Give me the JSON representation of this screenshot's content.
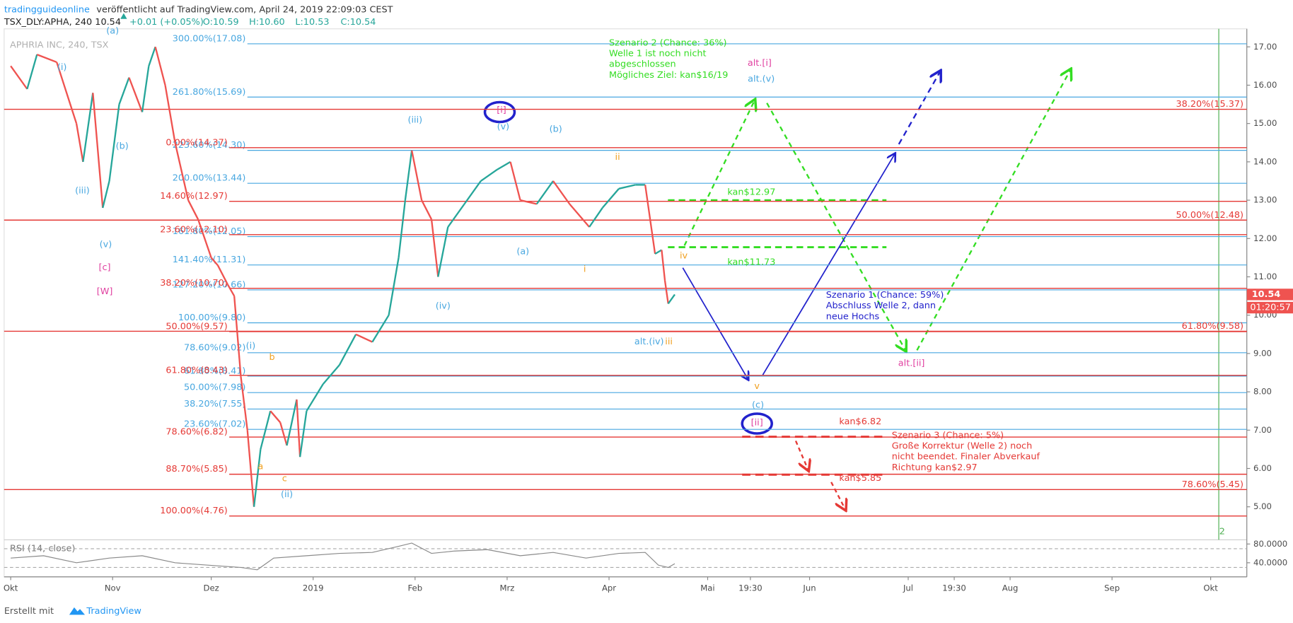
{
  "header": {
    "author": "tradingguideonline",
    "published": "veröffentlicht auf TradingView.com, April 24, 2019 22:09:03 CEST",
    "symbol": "TSX_DLY:APHA, 240 10.54",
    "change": "+0.01 (+0.05%)",
    "ohlc": [
      "O:10.59",
      "H:10.60",
      "L:10.53",
      "C:10.54"
    ],
    "watermark": "APHRIA INC, 240, TSX"
  },
  "footer": {
    "made_with": "Erstellt mit",
    "brand": "TradingView"
  },
  "chart_data": {
    "type": "line",
    "xlim": [
      -2,
      376
    ],
    "ylim": [
      4.14,
      17.47
    ],
    "yticks": [
      {
        "value": 5,
        "label": "5.00"
      },
      {
        "value": 6,
        "label": "6.00"
      },
      {
        "value": 7,
        "label": "7.00"
      },
      {
        "value": 8,
        "label": "8.00"
      },
      {
        "value": 9,
        "label": "9.00"
      },
      {
        "value": 10,
        "label": "10.00"
      },
      {
        "value": 11,
        "label": "11.00"
      },
      {
        "value": 12,
        "label": "12.00"
      },
      {
        "value": 13,
        "label": "13.00"
      },
      {
        "value": 14,
        "label": "14.00"
      },
      {
        "value": 15,
        "label": "15.00"
      },
      {
        "value": 16,
        "label": "16.00"
      },
      {
        "value": 17,
        "label": "17.00"
      }
    ],
    "xticks": [
      {
        "value": 0,
        "label": "Okt"
      },
      {
        "value": 31,
        "label": "Nov"
      },
      {
        "value": 61,
        "label": "Dez"
      },
      {
        "value": 92,
        "label": "2019"
      },
      {
        "value": 123,
        "label": "Feb"
      },
      {
        "value": 151,
        "label": "Mrz"
      },
      {
        "value": 182,
        "label": "Apr"
      },
      {
        "value": 212,
        "label": "Mai"
      },
      {
        "value": 225,
        "label": "19:30"
      },
      {
        "value": 243,
        "label": "Jun"
      },
      {
        "value": 273,
        "label": "Jul"
      },
      {
        "value": 287,
        "label": "19:30"
      },
      {
        "value": 304,
        "label": "Aug"
      },
      {
        "value": 335,
        "label": "Sep"
      },
      {
        "value": 365,
        "label": "Okt"
      }
    ],
    "price": {
      "up_color": "#26a69a",
      "down_color": "#ef5350",
      "x": [
        0,
        5,
        8,
        14,
        20,
        22,
        25,
        28,
        30,
        33,
        36,
        40,
        42,
        44,
        47,
        50,
        54,
        57,
        61,
        63,
        66,
        68,
        70,
        72,
        74,
        76,
        79,
        82,
        84,
        87,
        88,
        90,
        95,
        100,
        105,
        110,
        115,
        118,
        120,
        122,
        125,
        128,
        130,
        133,
        138,
        143,
        148,
        152,
        155,
        160,
        165,
        170,
        176,
        180,
        185,
        190,
        193,
        196,
        198,
        199,
        200,
        202
      ],
      "values": [
        16.5,
        15.9,
        16.8,
        16.6,
        15,
        14,
        15.8,
        12.8,
        13.5,
        15.5,
        16.2,
        15.3,
        16.5,
        17,
        16,
        14.5,
        13,
        12.5,
        11.5,
        11.3,
        10.8,
        10.5,
        8.4,
        7,
        5,
        6.5,
        7.5,
        7.2,
        6.6,
        7.8,
        6.3,
        7.5,
        8.2,
        8.7,
        9.5,
        9.3,
        10,
        11.5,
        13,
        14.3,
        13,
        12.5,
        11,
        12.3,
        12.9,
        13.5,
        13.8,
        14,
        13,
        12.9,
        13.5,
        12.9,
        12.3,
        12.8,
        13.3,
        13.4,
        13.4,
        11.6,
        11.7,
        10.9,
        10.3,
        10.54
      ]
    },
    "last": {
      "value": 10.54,
      "timer": "01:20:57"
    },
    "levels": [
      {
        "color": "#48a7e0",
        "items": [
          {
            "value": 17.08,
            "label": "300.00%(17.08)"
          },
          {
            "value": 15.69,
            "label": "261.80%(15.69)"
          },
          {
            "value": 14.3,
            "label": "223.60%(14.30)"
          },
          {
            "value": 13.44,
            "label": "200.00%(13.44)"
          },
          {
            "value": 12.05,
            "label": "161.80%(12.05)"
          },
          {
            "value": 11.31,
            "label": "141.40%(11.31)"
          },
          {
            "value": 10.66,
            "label": "127.20%(10.66)"
          },
          {
            "value": 9.8,
            "label": "100.00%(9.80)"
          },
          {
            "value": 9.02,
            "label": "78.60%(9.02)"
          },
          {
            "value": 8.41,
            "label": "61.80%(8.41)"
          },
          {
            "value": 7.98,
            "label": "50.00%(7.98)"
          },
          {
            "value": 7.55,
            "label": "38.20%(7.55)"
          },
          {
            "value": 7.02,
            "label": "23.60%(7.02)"
          }
        ]
      },
      {
        "color": "#e53935",
        "items": [
          {
            "value": 14.37,
            "label": "0.00%(14.37)"
          },
          {
            "value": 12.97,
            "label": "14.60%(12.97)"
          },
          {
            "value": 12.1,
            "label": "23.60%(12.10)"
          },
          {
            "value": 10.7,
            "label": "38.20%(10.70)"
          },
          {
            "value": 9.57,
            "label": "50.00%(9.57)"
          },
          {
            "value": 8.43,
            "label": "61.80%(8.43)"
          },
          {
            "value": 6.82,
            "label": "78.60%(6.82)"
          },
          {
            "value": 5.85,
            "label": "88.70%(5.85)"
          },
          {
            "value": 4.76,
            "label": "100.00%(4.76)"
          }
        ]
      },
      {
        "color": "#e53935",
        "items": [
          {
            "value": 15.37,
            "label": "38.20%(15.37)"
          },
          {
            "value": 12.48,
            "label": "50.00%(12.48)"
          },
          {
            "value": 9.58,
            "label": "61.80%(9.58)"
          },
          {
            "value": 5.45,
            "label": "78.60%(5.45)"
          }
        ]
      }
    ],
    "annotations": [
      {
        "text": "(a)",
        "color": "#48a7e0",
        "x": 31,
        "y": 17.41
      },
      {
        "text": "(i)",
        "color": "#48a7e0",
        "x": 15.6,
        "y": 16.46
      },
      {
        "text": "(b)",
        "color": "#48a7e0",
        "x": 33.9,
        "y": 14.4
      },
      {
        "text": "(iii)",
        "color": "#48a7e0",
        "x": 21.8,
        "y": 13.24
      },
      {
        "text": "(v)",
        "color": "#48a7e0",
        "x": 28.9,
        "y": 11.84
      },
      {
        "text": "[c]",
        "color": "#e040a0",
        "x": 28.6,
        "y": 11.24
      },
      {
        "text": "[W]",
        "color": "#e040a0",
        "x": 28.6,
        "y": 10.61
      },
      {
        "text": "(iii)",
        "color": "#48a7e0",
        "x": 123,
        "y": 15.09
      },
      {
        "text": "[i]",
        "color": "#e040a0",
        "x": 149.3,
        "y": 15.34
      },
      {
        "text": "(v)",
        "color": "#48a7e0",
        "x": 149.8,
        "y": 14.91
      },
      {
        "text": "(b)",
        "color": "#48a7e0",
        "x": 165.8,
        "y": 14.85
      },
      {
        "text": "ii",
        "color": "#f0a020",
        "x": 184.6,
        "y": 14.12
      },
      {
        "text": "(a)",
        "color": "#48a7e0",
        "x": 155.8,
        "y": 11.65
      },
      {
        "text": "i",
        "color": "#f0a020",
        "x": 174.6,
        "y": 11.19
      },
      {
        "text": "(iv)",
        "color": "#48a7e0",
        "x": 131.5,
        "y": 10.23
      },
      {
        "text": "iv",
        "color": "#f0a020",
        "x": 204.7,
        "y": 11.54
      },
      {
        "text": "alt.(iv)",
        "color": "#48a7e0",
        "x": 194.2,
        "y": 9.3
      },
      {
        "text": "iii",
        "color": "#f0a020",
        "x": 200.2,
        "y": 9.3
      },
      {
        "text": "v",
        "color": "#f0a020",
        "x": 227,
        "y": 8.14
      },
      {
        "text": "(c)",
        "color": "#48a7e0",
        "x": 227.3,
        "y": 7.65
      },
      {
        "text": "[ii]",
        "color": "#e040a0",
        "x": 227,
        "y": 7.19
      },
      {
        "text": "alt.[i]",
        "color": "#e040a0",
        "x": 227.8,
        "y": 16.57
      },
      {
        "text": "alt.(v)",
        "color": "#48a7e0",
        "x": 228.3,
        "y": 16.16
      },
      {
        "text": "alt.[ii]",
        "color": "#e040a0",
        "x": 274,
        "y": 8.74
      },
      {
        "text": "(i)",
        "color": "#48a7e0",
        "x": 73,
        "y": 9.19
      },
      {
        "text": "b",
        "color": "#f0a020",
        "x": 79.5,
        "y": 8.9
      },
      {
        "text": "a",
        "color": "#f0a020",
        "x": 76,
        "y": 6.05
      },
      {
        "text": "c",
        "color": "#f0a020",
        "x": 83.3,
        "y": 5.73
      },
      {
        "text": "(ii)",
        "color": "#48a7e0",
        "x": 84,
        "y": 5.32
      },
      {
        "text": "2",
        "color": "#4caf50",
        "x": 368.5,
        "y": 4.35
      }
    ],
    "notes": [
      {
        "color": "#33dd22",
        "x": 182,
        "y": 17.1,
        "lines": [
          "Szenario 2 (Chance: 36%)",
          "Welle 1 ist noch nicht",
          "abgeschlossen",
          "Mögliches Ziel: kan$16/19"
        ]
      },
      {
        "color": "#33dd22",
        "x": 218,
        "y": 13.2,
        "lines": [
          "kan$12.97"
        ]
      },
      {
        "color": "#33dd22",
        "x": 218,
        "y": 11.38,
        "lines": [
          "kan$11.73"
        ]
      },
      {
        "color": "#2222cc",
        "x": 248,
        "y": 10.52,
        "lines": [
          "Szenario 1 (Chance: 59%)",
          "Abschluss Welle 2, dann",
          "neue Hochs"
        ]
      },
      {
        "color": "#e53935",
        "x": 268,
        "y": 6.86,
        "lines": [
          "Szenario 3 (Chance: 5%)",
          "Große Korrektur (Welle 2) noch",
          "nicht beendet. Finaler Abverkauf",
          "Richtung kan$2.97"
        ]
      },
      {
        "color": "#e53935",
        "x": 252,
        "y": 7.22,
        "lines": [
          "kan$6.82"
        ]
      },
      {
        "color": "#e53935",
        "x": 252,
        "y": 5.74,
        "lines": [
          "kan$5.85"
        ]
      }
    ],
    "rsi": {
      "label": "RSI (14, close)",
      "color": "#8a8a8a",
      "ylim": [
        10,
        89
      ],
      "yticks": [
        {
          "value": 80,
          "label": "80.0000"
        },
        {
          "value": 40,
          "label": "40.0000"
        }
      ],
      "bands": [
        70,
        30
      ],
      "x": [
        0,
        10,
        20,
        30,
        40,
        50,
        60,
        70,
        75,
        80,
        90,
        100,
        110,
        118,
        122,
        128,
        135,
        145,
        155,
        165,
        175,
        185,
        193,
        197,
        200,
        202
      ],
      "values": [
        50,
        55,
        40,
        50,
        55,
        40,
        35,
        30,
        25,
        50,
        55,
        60,
        62,
        75,
        82,
        60,
        65,
        68,
        55,
        62,
        50,
        60,
        62,
        35,
        30,
        38
      ]
    }
  }
}
